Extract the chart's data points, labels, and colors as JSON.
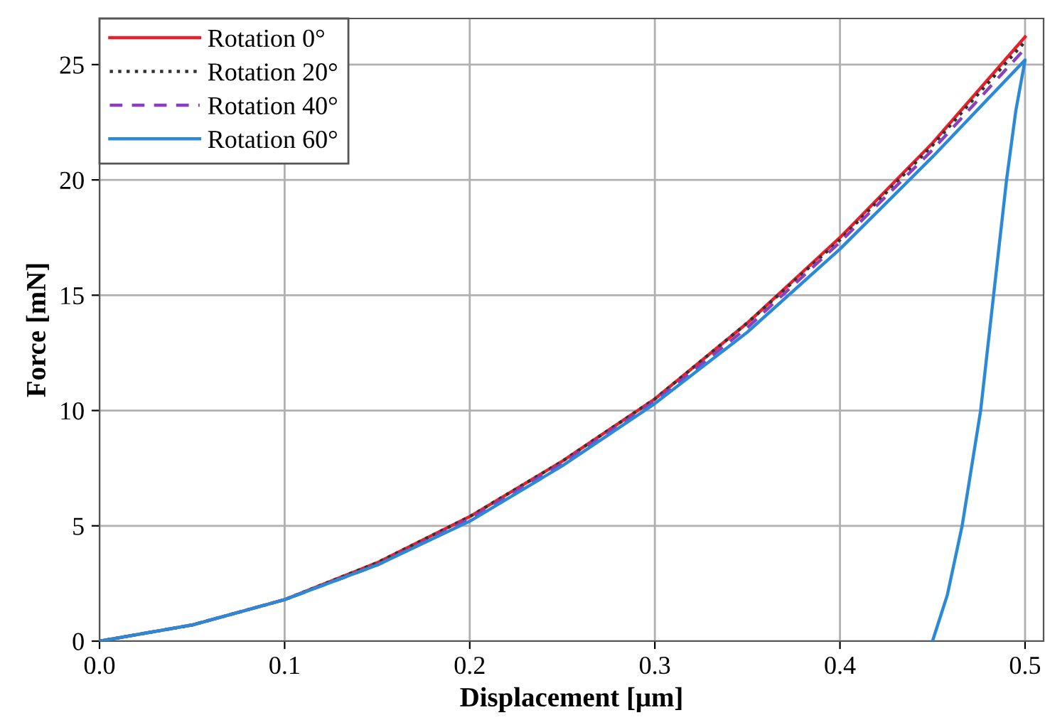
{
  "chart_data": {
    "type": "line",
    "xlabel": "Displacement [μm]",
    "ylabel": "Force [mN]",
    "xlim": [
      0,
      0.51
    ],
    "ylim": [
      0,
      27
    ],
    "xticks": [
      {
        "value": 0,
        "label": "0.0"
      },
      0.1,
      0.2,
      0.3,
      0.4,
      0.5
    ],
    "yticks": [
      0,
      5,
      10,
      15,
      20,
      25
    ],
    "grid": true,
    "legend": "top left",
    "marker": "none",
    "series": [
      {
        "name": "Rotation 0°",
        "color": "#e8202a",
        "line_style": "solid",
        "x": [
          0,
          0.05,
          0.1,
          0.15,
          0.2,
          0.25,
          0.3,
          0.35,
          0.4,
          0.45,
          0.5
        ],
        "values": [
          0,
          0.7,
          1.8,
          3.4,
          5.4,
          7.8,
          10.5,
          13.8,
          17.5,
          21.6,
          26.2
        ]
      },
      {
        "name": "Rotation 20°",
        "color": "#333333",
        "line_style": "dotted",
        "x": [
          0,
          0.05,
          0.1,
          0.15,
          0.2,
          0.25,
          0.3,
          0.35,
          0.4,
          0.45,
          0.5
        ],
        "values": [
          0,
          0.7,
          1.8,
          3.4,
          5.4,
          7.8,
          10.5,
          13.8,
          17.4,
          21.5,
          26.0
        ]
      },
      {
        "name": "Rotation 40°",
        "color": "#8a3fbf",
        "line_style": "dashed",
        "x": [
          0,
          0.05,
          0.1,
          0.15,
          0.2,
          0.25,
          0.3,
          0.35,
          0.4,
          0.45,
          0.5
        ],
        "values": [
          0,
          0.7,
          1.8,
          3.3,
          5.3,
          7.7,
          10.4,
          13.6,
          17.3,
          21.3,
          25.7
        ]
      },
      {
        "name": "Rotation 60°",
        "color": "#2a8ad8",
        "line_style": "solid",
        "x": [
          0,
          0.05,
          0.1,
          0.15,
          0.2,
          0.25,
          0.3,
          0.35,
          0.4,
          0.45,
          0.5,
          0.495,
          0.49,
          0.483,
          0.476,
          0.466,
          0.458,
          0.452,
          0.45
        ],
        "values": [
          0,
          0.7,
          1.8,
          3.3,
          5.2,
          7.6,
          10.3,
          13.4,
          17.0,
          21.0,
          25.2,
          23,
          20,
          15,
          10,
          5,
          2,
          0.5,
          0
        ]
      }
    ]
  }
}
